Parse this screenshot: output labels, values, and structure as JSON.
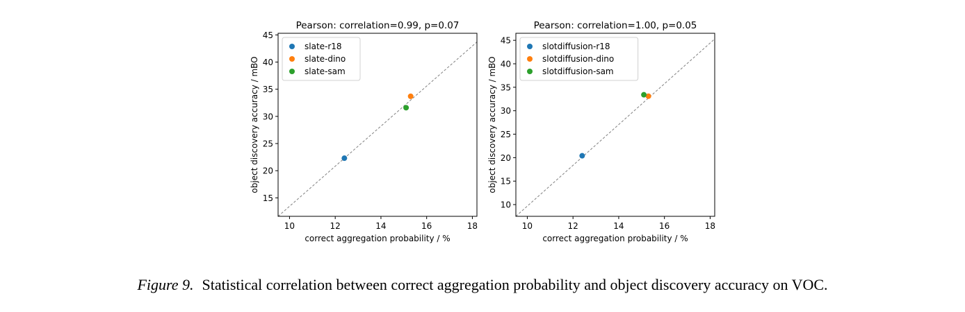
{
  "chart_data": [
    {
      "type": "scatter",
      "title": "Pearson: correlation=0.99, p=0.07",
      "xlabel": "correct aggregation probability / %",
      "ylabel": "object discovery accuracy / mBO",
      "xlim": [
        9.5,
        18.2
      ],
      "ylim": [
        11.6,
        45.3
      ],
      "xticks": [
        10,
        12,
        14,
        16,
        18
      ],
      "yticks": [
        15,
        20,
        25,
        30,
        35,
        40,
        45
      ],
      "grid": false,
      "legend_position": "top-left",
      "trendline": {
        "style": "dashed",
        "color": "#808080",
        "from": [
          9.5,
          11.6
        ],
        "to": [
          18.2,
          43.7
        ]
      },
      "series": [
        {
          "name": "slate-r18",
          "color": "#1f77b4",
          "x": [
            12.4
          ],
          "y": [
            22.3
          ]
        },
        {
          "name": "slate-dino",
          "color": "#ff7f0e",
          "x": [
            15.3
          ],
          "y": [
            33.7
          ]
        },
        {
          "name": "slate-sam",
          "color": "#2ca02c",
          "x": [
            15.1
          ],
          "y": [
            31.6
          ]
        }
      ]
    },
    {
      "type": "scatter",
      "title": "Pearson: correlation=1.00, p=0.05",
      "xlabel": "correct aggregation probability / %",
      "ylabel": "object discovery accuracy / mBO",
      "xlim": [
        9.5,
        18.2
      ],
      "ylim": [
        7.5,
        46.5
      ],
      "xticks": [
        10,
        12,
        14,
        16,
        18
      ],
      "yticks": [
        10,
        15,
        20,
        25,
        30,
        35,
        40,
        45
      ],
      "grid": false,
      "legend_position": "top-left",
      "trendline": {
        "style": "dashed",
        "color": "#808080",
        "from": [
          9.5,
          7.5
        ],
        "to": [
          18.2,
          45.3
        ]
      },
      "series": [
        {
          "name": "slotdiffusion-r18",
          "color": "#1f77b4",
          "x": [
            12.4
          ],
          "y": [
            20.4
          ]
        },
        {
          "name": "slotdiffusion-dino",
          "color": "#ff7f0e",
          "x": [
            15.3
          ],
          "y": [
            33.1
          ]
        },
        {
          "name": "slotdiffusion-sam",
          "color": "#2ca02c",
          "x": [
            15.1
          ],
          "y": [
            33.4
          ]
        }
      ]
    }
  ],
  "caption": {
    "label": "Figure 9.",
    "text": "Statistical correlation between correct aggregation probability and object discovery accuracy on VOC."
  }
}
